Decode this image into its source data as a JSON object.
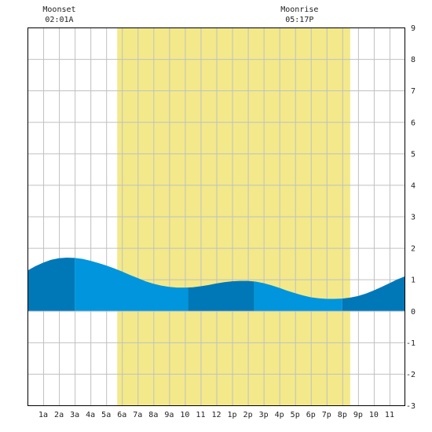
{
  "chart_data": {
    "type": "area",
    "title": "",
    "xlabel": "",
    "ylabel": "",
    "xlim": [
      0,
      24
    ],
    "ylim": [
      -3,
      9
    ],
    "grid": true,
    "x_tick_labels": [
      {
        "x": 1,
        "label": "1a"
      },
      {
        "x": 2,
        "label": "2a"
      },
      {
        "x": 3,
        "label": "3a"
      },
      {
        "x": 4,
        "label": "4a"
      },
      {
        "x": 5,
        "label": "5a"
      },
      {
        "x": 6,
        "label": "6a"
      },
      {
        "x": 7,
        "label": "7a"
      },
      {
        "x": 8,
        "label": "8a"
      },
      {
        "x": 9,
        "label": "9a"
      },
      {
        "x": 10,
        "label": "10"
      },
      {
        "x": 11,
        "label": "11"
      },
      {
        "x": 12,
        "label": "12"
      },
      {
        "x": 13,
        "label": "1p"
      },
      {
        "x": 14,
        "label": "2p"
      },
      {
        "x": 15,
        "label": "3p"
      },
      {
        "x": 16,
        "label": "4p"
      },
      {
        "x": 17,
        "label": "5p"
      },
      {
        "x": 18,
        "label": "6p"
      },
      {
        "x": 19,
        "label": "7p"
      },
      {
        "x": 20,
        "label": "8p"
      },
      {
        "x": 21,
        "label": "9p"
      },
      {
        "x": 22,
        "label": "10"
      },
      {
        "x": 23,
        "label": "11"
      }
    ],
    "y_ticks": [
      -3,
      -2,
      -1,
      0,
      1,
      2,
      3,
      4,
      5,
      6,
      7,
      8,
      9
    ],
    "daylight": [
      5.7,
      20.5
    ],
    "events": [
      {
        "name": "Moonset",
        "time": "02:01A",
        "x": 2.02
      },
      {
        "name": "Moonrise",
        "time": "05:17P",
        "x": 17.28
      }
    ],
    "tide_shading_bands": [
      {
        "from": 0,
        "to": 3,
        "shade": "dark"
      },
      {
        "from": 3,
        "to": 10.2,
        "shade": "light"
      },
      {
        "from": 10.2,
        "to": 14.4,
        "shade": "dark"
      },
      {
        "from": 14.4,
        "to": 20,
        "shade": "light"
      },
      {
        "from": 20,
        "to": 24,
        "shade": "dark"
      }
    ],
    "series": [
      {
        "x": [
          0,
          0.5,
          1,
          1.5,
          2,
          2.5,
          3,
          3.5,
          4,
          4.5,
          5,
          5.5,
          6,
          6.5,
          7,
          7.5,
          8,
          8.5,
          9,
          9.5,
          10,
          10.5,
          11,
          11.5,
          12,
          12.5,
          13,
          13.5,
          14,
          14.5,
          15,
          15.5,
          16,
          16.5,
          17,
          17.5,
          18,
          18.5,
          19,
          19.5,
          20,
          20.5,
          21,
          21.5,
          22,
          22.5,
          23,
          23.5,
          24
        ],
        "values": [
          1.28,
          1.42,
          1.53,
          1.62,
          1.67,
          1.69,
          1.68,
          1.65,
          1.59,
          1.52,
          1.44,
          1.35,
          1.25,
          1.14,
          1.04,
          0.94,
          0.86,
          0.8,
          0.76,
          0.74,
          0.74,
          0.75,
          0.78,
          0.82,
          0.87,
          0.91,
          0.94,
          0.95,
          0.95,
          0.93,
          0.88,
          0.81,
          0.73,
          0.64,
          0.56,
          0.49,
          0.43,
          0.4,
          0.38,
          0.38,
          0.39,
          0.42,
          0.47,
          0.55,
          0.65,
          0.76,
          0.88,
          1.0,
          1.1
        ]
      }
    ],
    "colors": {
      "background": "#ffffff",
      "daylight": "#f3e98a",
      "grid": "#c0c0c0",
      "tide_light": "#0095dc",
      "tide_dark": "#0078b8",
      "axis": "#000000",
      "text": "#222222"
    }
  }
}
